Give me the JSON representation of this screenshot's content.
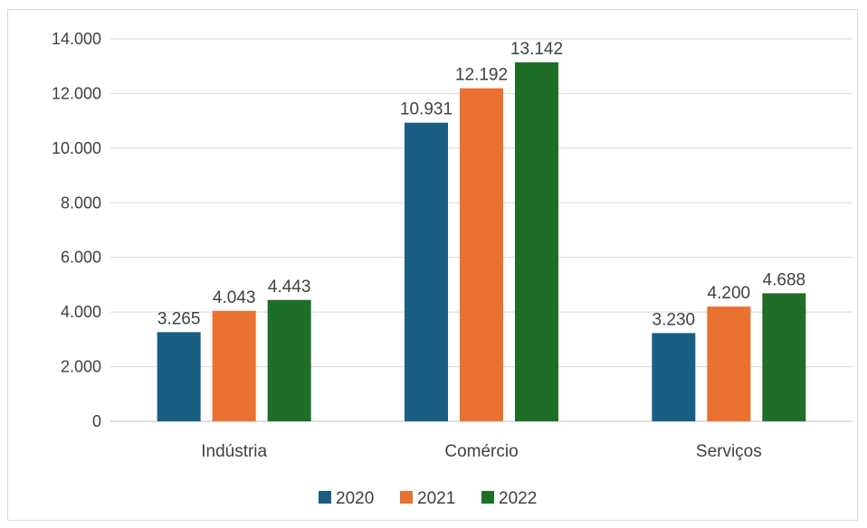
{
  "chart_data": {
    "type": "bar",
    "categories": [
      "Indústria",
      "Comércio",
      "Serviços"
    ],
    "series": [
      {
        "name": "2020",
        "color": "#1a5e83",
        "values": [
          3265,
          10931,
          3230
        ],
        "labels": [
          "3.265",
          "10.931",
          "3.230"
        ]
      },
      {
        "name": "2021",
        "color": "#e97132",
        "values": [
          4043,
          12192,
          4200
        ],
        "labels": [
          "4.043",
          "12.192",
          "4.200"
        ]
      },
      {
        "name": "2022",
        "color": "#1f6e28",
        "values": [
          4443,
          13142,
          4688
        ],
        "labels": [
          "4.443",
          "13.142",
          "4.688"
        ]
      }
    ],
    "ylim": [
      0,
      14000
    ],
    "yticks": [
      0,
      2000,
      4000,
      6000,
      8000,
      10000,
      12000,
      14000
    ],
    "ytick_labels": [
      "0",
      "2.000",
      "4.000",
      "6.000",
      "8.000",
      "10.000",
      "12.000",
      "14.000"
    ],
    "grid": true,
    "legend_position": "bottom"
  }
}
